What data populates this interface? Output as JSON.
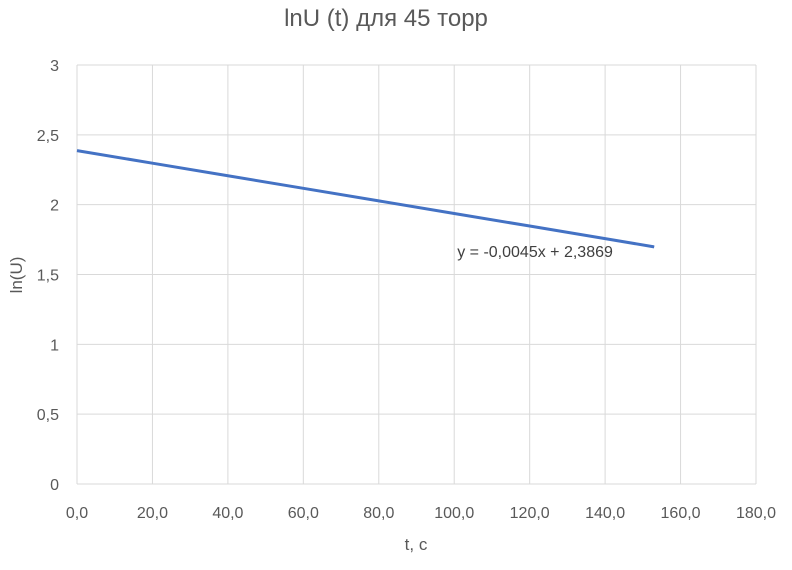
{
  "chart_data": {
    "type": "scatter",
    "title": "lnU (t) для 45 торр",
    "xlabel": "t, с",
    "ylabel": "ln(U)",
    "xlim": [
      0,
      180
    ],
    "ylim": [
      0,
      3
    ],
    "x_ticks": [
      0,
      20,
      40,
      60,
      80,
      100,
      120,
      140,
      160,
      180
    ],
    "x_tick_labels": [
      "0,0",
      "20,0",
      "40,0",
      "60,0",
      "80,0",
      "100,0",
      "120,0",
      "140,0",
      "160,0",
      "180,0"
    ],
    "y_ticks": [
      0,
      0.5,
      1,
      1.5,
      2,
      2.5,
      3
    ],
    "y_tick_labels": [
      "0",
      "0,5",
      "1",
      "1,5",
      "2",
      "2,5",
      "3"
    ],
    "grid": true,
    "legend": "none",
    "series": [
      {
        "color": "#4472C4",
        "x": [
          0,
          20,
          40,
          60,
          80,
          100,
          120,
          140,
          153
        ],
        "y": [
          2.387,
          2.297,
          2.207,
          2.117,
          2.027,
          1.937,
          1.847,
          1.757,
          1.698
        ]
      }
    ],
    "trendline": {
      "color": "#4472C4",
      "slope": -0.0045,
      "intercept": 2.3869,
      "x_range": [
        0,
        153
      ],
      "equation_label": "y = -0,0045x + 2,3869",
      "label_at": [
        100,
        1.67
      ]
    }
  }
}
